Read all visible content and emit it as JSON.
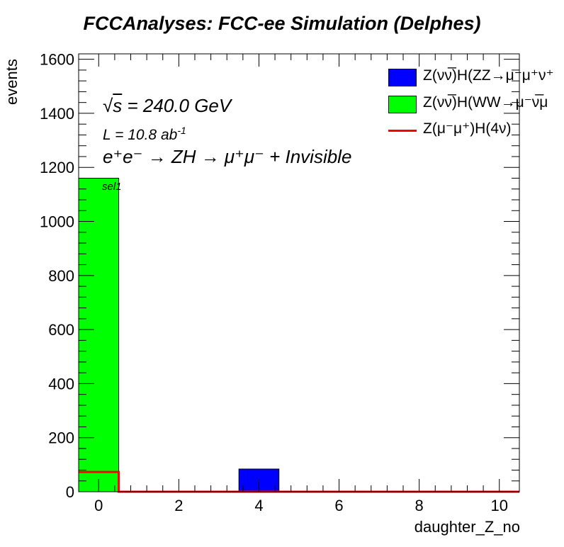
{
  "chart_data": {
    "type": "bar",
    "title": "FCCAnalyses: FCC-ee Simulation (Delphes)",
    "xlabel": "daughter_Z_no",
    "ylabel": "events",
    "xlim": [
      -0.5,
      10.5
    ],
    "ylim": [
      0,
      1620
    ],
    "x_ticks": [
      0,
      2,
      4,
      6,
      8,
      10
    ],
    "y_ticks": [
      0,
      200,
      400,
      600,
      800,
      1000,
      1200,
      1400,
      1600
    ],
    "grid": false,
    "legend_position": "top-right",
    "annotations": {
      "sqrt_s": "= 240.0 GeV",
      "lumi": "L = 10.8 ab",
      "lumi_exp": "-1",
      "process": "e⁺e⁻ → ZH → μ⁺μ⁻ + Invisible",
      "selection": "sel1"
    },
    "bin_width": 1,
    "series": [
      {
        "name": "Z(νν̅)H(ZZ→μ⁻μ⁺ν⁺",
        "style": "stacked-fill",
        "color": "#0000ff",
        "bins": [
          {
            "x": 4,
            "value": 84
          }
        ]
      },
      {
        "name": "Z(νν̅)H(WW→μ⁻ν̅μ",
        "style": "stacked-fill",
        "color": "#00ff00",
        "bins": [
          {
            "x": 0,
            "value": 1160
          }
        ]
      },
      {
        "name": "Z(μ⁻μ⁺)H(4ν)",
        "style": "step-line",
        "color": "#ff0000",
        "bins": [
          {
            "x": 0,
            "value": 73
          },
          {
            "x": 1,
            "value": 0
          },
          {
            "x": 2,
            "value": 0
          },
          {
            "x": 3,
            "value": 0
          },
          {
            "x": 4,
            "value": 0
          },
          {
            "x": 5,
            "value": 0
          },
          {
            "x": 6,
            "value": 0
          },
          {
            "x": 7,
            "value": 0
          },
          {
            "x": 8,
            "value": 0
          },
          {
            "x": 9,
            "value": 0
          },
          {
            "x": 10,
            "value": 0
          }
        ]
      }
    ]
  }
}
